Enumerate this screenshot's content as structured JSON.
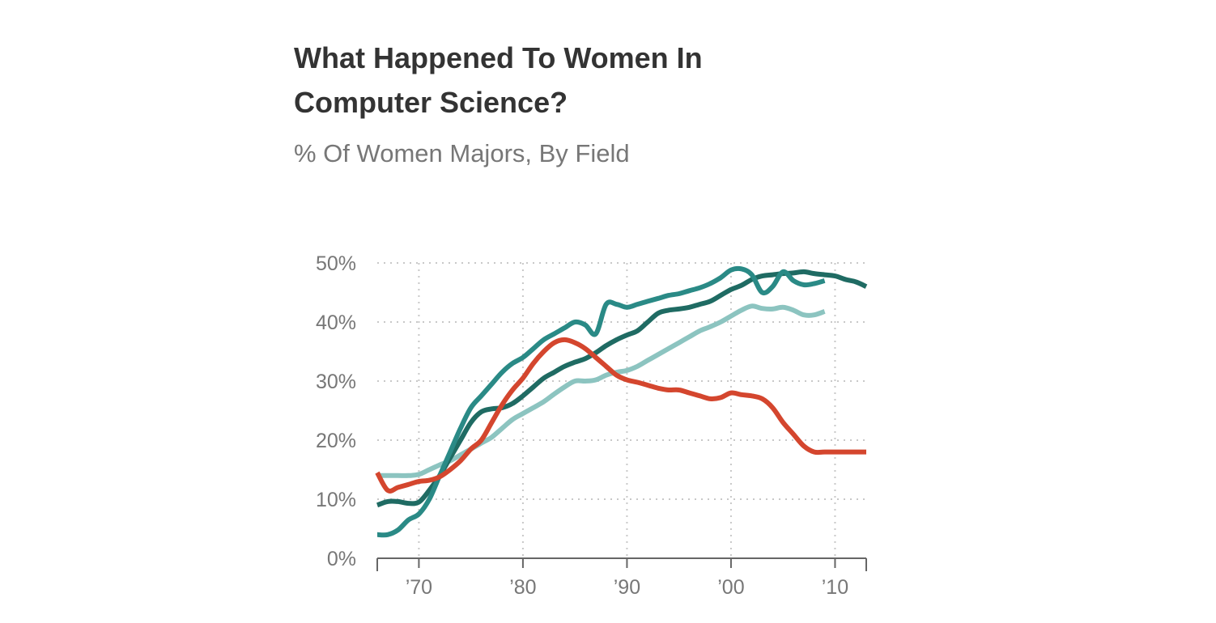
{
  "header": {
    "title": "What Happened To Women In Computer Science?",
    "subtitle": "% Of Women Majors, By Field"
  },
  "chart_data": {
    "type": "line",
    "title": "What Happened To Women In Computer Science?",
    "subtitle": "% Of Women Majors, By Field",
    "xlabel": "",
    "ylabel": "",
    "xlim": [
      1966,
      2013
    ],
    "ylim": [
      0,
      50
    ],
    "y_ticks": [
      0,
      10,
      20,
      30,
      40,
      50
    ],
    "y_tick_labels": [
      "0%",
      "10%",
      "20%",
      "30%",
      "40%",
      "50%"
    ],
    "x_ticks": [
      1970,
      1980,
      1990,
      2000,
      2010
    ],
    "x_tick_labels": [
      "’70",
      "’80",
      "’90",
      "’00",
      "’10"
    ],
    "grid": true,
    "legend": "none",
    "series": [
      {
        "color": "#8cc4c0",
        "x": [
          1966,
          1967,
          1968,
          1969,
          1970,
          1971,
          1972,
          1973,
          1974,
          1975,
          1976,
          1977,
          1978,
          1979,
          1980,
          1981,
          1982,
          1983,
          1984,
          1985,
          1986,
          1987,
          1988,
          1989,
          1990,
          1991,
          1992,
          1993,
          1994,
          1995,
          1996,
          1997,
          1998,
          1999,
          2000,
          2001,
          2002,
          2003,
          2004,
          2005,
          2006,
          2007,
          2008,
          2009
        ],
        "y": [
          14,
          14,
          14,
          14,
          14.2,
          15,
          15.8,
          16.5,
          17.5,
          18.5,
          19.5,
          20.5,
          22,
          23.5,
          24.5,
          25.5,
          26.5,
          27.8,
          29,
          30,
          30,
          30.2,
          31,
          31.5,
          31.8,
          32.5,
          33.5,
          34.5,
          35.5,
          36.5,
          37.5,
          38.5,
          39.2,
          40,
          41,
          42,
          42.7,
          42.3,
          42.2,
          42.5,
          42,
          41.2,
          41.2,
          41.8
        ]
      },
      {
        "color": "#1f6b63",
        "x": [
          1966,
          1967,
          1968,
          1969,
          1970,
          1971,
          1972,
          1973,
          1974,
          1975,
          1976,
          1977,
          1978,
          1979,
          1980,
          1981,
          1982,
          1983,
          1984,
          1985,
          1986,
          1987,
          1988,
          1989,
          1990,
          1991,
          1992,
          1993,
          1994,
          1995,
          1996,
          1997,
          1998,
          1999,
          2000,
          2001,
          2002,
          2003,
          2004,
          2005,
          2006,
          2007,
          2008,
          2009,
          2010,
          2011,
          2012,
          2013
        ],
        "y": [
          9,
          9.6,
          9.6,
          9.3,
          9.5,
          11.5,
          14,
          17,
          20,
          23,
          24.8,
          25.3,
          25.5,
          26.2,
          27.5,
          29,
          30.5,
          31.5,
          32.5,
          33.2,
          33.8,
          34.8,
          36,
          37,
          37.8,
          38.5,
          40,
          41.5,
          42,
          42.2,
          42.5,
          43,
          43.5,
          44.5,
          45.5,
          46.2,
          47.2,
          47.8,
          48,
          48.2,
          48.3,
          48.5,
          48.2,
          48,
          47.8,
          47.2,
          46.8,
          46
        ]
      },
      {
        "color": "#2a8a86",
        "x": [
          1966,
          1967,
          1968,
          1969,
          1970,
          1971,
          1972,
          1973,
          1974,
          1975,
          1976,
          1977,
          1978,
          1979,
          1980,
          1981,
          1982,
          1983,
          1984,
          1985,
          1986,
          1987,
          1988,
          1989,
          1990,
          1991,
          1992,
          1993,
          1994,
          1995,
          1996,
          1997,
          1998,
          1999,
          2000,
          2001,
          2002,
          2003,
          2004,
          2005,
          2006,
          2007,
          2008,
          2009
        ],
        "y": [
          4,
          4,
          4.8,
          6.5,
          7.5,
          10,
          14,
          18,
          22,
          25.5,
          27.5,
          29.5,
          31.5,
          33,
          34,
          35.5,
          37,
          38,
          39,
          40,
          39.5,
          38,
          43,
          43,
          42.5,
          43,
          43.5,
          44,
          44.5,
          44.8,
          45.3,
          45.8,
          46.5,
          47.5,
          48.8,
          49,
          48,
          45,
          46,
          48.5,
          47,
          46.3,
          46.5,
          47
        ]
      },
      {
        "color": "#d4462e",
        "x": [
          1966,
          1967,
          1968,
          1969,
          1970,
          1971,
          1972,
          1973,
          1974,
          1975,
          1976,
          1977,
          1978,
          1979,
          1980,
          1981,
          1982,
          1983,
          1984,
          1985,
          1986,
          1987,
          1988,
          1989,
          1990,
          1991,
          1992,
          1993,
          1994,
          1995,
          1996,
          1997,
          1998,
          1999,
          2000,
          2001,
          2002,
          2003,
          2004,
          2005,
          2006,
          2007,
          2008,
          2009,
          2010,
          2011,
          2012,
          2013
        ],
        "y": [
          14.5,
          11.5,
          12,
          12.5,
          13,
          13.2,
          13.8,
          15,
          16.5,
          18.5,
          20,
          23,
          26,
          28.5,
          30.5,
          33,
          35,
          36.5,
          37,
          36.5,
          35.5,
          34,
          32.5,
          31,
          30.2,
          29.8,
          29.3,
          28.8,
          28.5,
          28.5,
          28,
          27.5,
          27,
          27.2,
          28,
          27.7,
          27.5,
          27,
          25.5,
          23,
          21,
          19,
          18,
          18,
          18,
          18,
          18,
          18
        ]
      }
    ]
  }
}
